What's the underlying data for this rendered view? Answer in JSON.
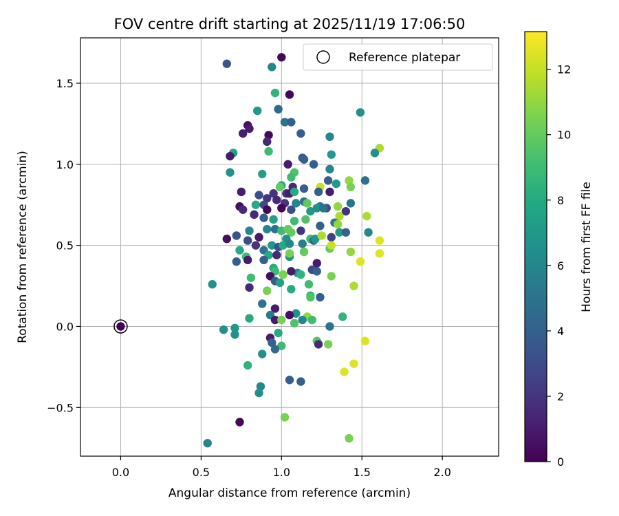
{
  "chart_data": {
    "type": "scatter",
    "title": "FOV centre drift starting at 2025/11/19 17:06:50",
    "xlabel": "Angular distance from reference (arcmin)",
    "ylabel": "Rotation from reference (arcmin)",
    "xlim": [
      -0.25,
      2.35
    ],
    "ylim": [
      -0.8,
      1.78
    ],
    "x_ticks": [
      0.0,
      0.5,
      1.0,
      1.5,
      2.0
    ],
    "x_tick_labels": [
      "0.0",
      "0.5",
      "1.0",
      "1.5",
      "2.0"
    ],
    "y_ticks": [
      -0.5,
      0.0,
      0.5,
      1.0,
      1.5
    ],
    "y_tick_labels": [
      "−0.5",
      "0.0",
      "0.5",
      "1.0",
      "1.5"
    ],
    "grid": true,
    "legend": {
      "label": "Reference platepar",
      "position": "top-right"
    },
    "reference_point": {
      "x": 0.0,
      "y": 0.0
    },
    "colorbar": {
      "label": "Hours from first FF file",
      "range": [
        0,
        13.15
      ],
      "ticks": [
        0,
        2,
        4,
        6,
        8,
        10,
        12
      ],
      "tick_labels": [
        "0",
        "2",
        "4",
        "6",
        "8",
        "10",
        "12"
      ],
      "colormap": [
        "#440154",
        "#482475",
        "#414487",
        "#355f8d",
        "#2a788e",
        "#21918c",
        "#22a884",
        "#44bf70",
        "#7ad151",
        "#bddf26",
        "#fde725"
      ]
    },
    "series": [
      {
        "name": "FOV centre",
        "points": [
          [
            1.0,
            1.66,
            0.3
          ],
          [
            1.05,
            1.43,
            0.2
          ],
          [
            0.66,
            1.62,
            3.5
          ],
          [
            0.94,
            1.6,
            6.0
          ],
          [
            0.96,
            1.44,
            8.5
          ],
          [
            0.98,
            1.34,
            4.5
          ],
          [
            0.85,
            1.33,
            7.0
          ],
          [
            1.49,
            1.32,
            6.5
          ],
          [
            1.02,
            1.26,
            5.0
          ],
          [
            1.06,
            1.26,
            4.0
          ],
          [
            0.79,
            1.24,
            0.5
          ],
          [
            0.8,
            1.22,
            1.0
          ],
          [
            0.76,
            1.19,
            1.0
          ],
          [
            1.12,
            1.19,
            4.0
          ],
          [
            0.92,
            1.18,
            0.3
          ],
          [
            1.3,
            1.17,
            6.0
          ],
          [
            0.91,
            1.14,
            1.5
          ],
          [
            1.61,
            1.1,
            11.5
          ],
          [
            1.58,
            1.07,
            6.5
          ],
          [
            0.7,
            1.07,
            7.5
          ],
          [
            0.68,
            1.05,
            1.0
          ],
          [
            0.92,
            1.08,
            9.0
          ],
          [
            1.31,
            1.06,
            7.0
          ],
          [
            1.13,
            1.04,
            4.0
          ],
          [
            1.14,
            1.03,
            4.0
          ],
          [
            1.04,
            1.0,
            1.0
          ],
          [
            1.2,
            1.0,
            4.0
          ],
          [
            1.3,
            0.97,
            6.0
          ],
          [
            1.08,
            0.95,
            9.5
          ],
          [
            0.68,
            0.95,
            6.5
          ],
          [
            0.88,
            0.94,
            7.5
          ],
          [
            1.06,
            0.92,
            9.0
          ],
          [
            1.29,
            0.9,
            4.0
          ],
          [
            1.34,
            0.88,
            7.0
          ],
          [
            1.42,
            0.9,
            11.0
          ],
          [
            1.52,
            0.9,
            5.0
          ],
          [
            1.0,
            0.87,
            8.0
          ],
          [
            0.99,
            0.86,
            10.0
          ],
          [
            1.07,
            0.86,
            1.5
          ],
          [
            1.14,
            0.85,
            4.0
          ],
          [
            1.24,
            0.86,
            12.0
          ],
          [
            1.43,
            0.86,
            10.5
          ],
          [
            0.75,
            0.83,
            1.0
          ],
          [
            0.86,
            0.81,
            3.0
          ],
          [
            0.95,
            0.82,
            2.0
          ],
          [
            1.03,
            0.82,
            2.0
          ],
          [
            1.05,
            0.82,
            1.0
          ],
          [
            1.08,
            0.83,
            8.0
          ],
          [
            1.23,
            0.83,
            4.0
          ],
          [
            1.3,
            0.83,
            1.0
          ],
          [
            0.91,
            0.79,
            2.0
          ],
          [
            0.97,
            0.78,
            1.5
          ],
          [
            1.02,
            0.76,
            2.0
          ],
          [
            1.09,
            0.76,
            6.0
          ],
          [
            1.14,
            0.77,
            5.0
          ],
          [
            1.16,
            0.76,
            10.0
          ],
          [
            1.24,
            0.74,
            5.0
          ],
          [
            1.28,
            0.73,
            3.0
          ],
          [
            1.35,
            0.74,
            11.0
          ],
          [
            1.43,
            0.76,
            5.0
          ],
          [
            0.74,
            0.74,
            0.5
          ],
          [
            0.76,
            0.72,
            1.5
          ],
          [
            0.84,
            0.75,
            8.0
          ],
          [
            0.89,
            0.75,
            3.0
          ],
          [
            0.91,
            0.72,
            0.2
          ],
          [
            1.0,
            0.73,
            0.2
          ],
          [
            1.06,
            0.72,
            3.0
          ],
          [
            1.18,
            0.71,
            7.0
          ],
          [
            1.22,
            0.73,
            6.5
          ],
          [
            1.26,
            0.73,
            5.0
          ],
          [
            1.4,
            0.71,
            2.0
          ],
          [
            1.36,
            0.68,
            11.5
          ],
          [
            0.83,
            0.69,
            1.5
          ],
          [
            0.89,
            0.67,
            4.0
          ],
          [
            0.95,
            0.66,
            7.5
          ],
          [
            1.08,
            0.65,
            9.0
          ],
          [
            1.15,
            0.66,
            9.5
          ],
          [
            1.33,
            0.64,
            5.0
          ],
          [
            1.35,
            0.63,
            11.0
          ],
          [
            1.53,
            0.68,
            11.5
          ],
          [
            0.91,
            0.6,
            6.0
          ],
          [
            0.96,
            0.6,
            5.0
          ],
          [
            1.0,
            0.59,
            9.0
          ],
          [
            1.04,
            0.6,
            10.0
          ],
          [
            1.06,
            0.58,
            10.0
          ],
          [
            1.12,
            0.59,
            2.0
          ],
          [
            1.24,
            0.62,
            4.0
          ],
          [
            1.36,
            0.58,
            7.0
          ],
          [
            1.4,
            0.58,
            4.0
          ],
          [
            1.54,
            0.58,
            6.0
          ],
          [
            0.72,
            0.56,
            3.5
          ],
          [
            0.8,
            0.59,
            6.0
          ],
          [
            0.86,
            0.55,
            1.0
          ],
          [
            1.03,
            0.54,
            6.5
          ],
          [
            1.18,
            0.54,
            9.0
          ],
          [
            1.2,
            0.53,
            4.0
          ],
          [
            1.21,
            0.54,
            7.0
          ],
          [
            1.25,
            0.56,
            11.5
          ],
          [
            1.31,
            0.55,
            2.5
          ],
          [
            1.61,
            0.53,
            12.5
          ],
          [
            0.66,
            0.54,
            0.5
          ],
          [
            0.79,
            0.53,
            3.0
          ],
          [
            0.84,
            0.5,
            2.0
          ],
          [
            0.89,
            0.47,
            5.0
          ],
          [
            0.94,
            0.5,
            7.0
          ],
          [
            0.98,
            0.49,
            3.5
          ],
          [
            1.01,
            0.5,
            8.0
          ],
          [
            1.05,
            0.51,
            6.0
          ],
          [
            1.13,
            0.51,
            5.5
          ],
          [
            1.3,
            0.48,
            10.0
          ],
          [
            1.31,
            0.5,
            12.0
          ],
          [
            0.74,
            0.47,
            8.0
          ],
          [
            0.78,
            0.43,
            9.0
          ],
          [
            0.92,
            0.44,
            8.0
          ],
          [
            0.97,
            0.44,
            1.5
          ],
          [
            1.05,
            0.43,
            6.5
          ],
          [
            1.05,
            0.45,
            10.5
          ],
          [
            1.14,
            0.46,
            10.0
          ],
          [
            1.43,
            0.46,
            11.0
          ],
          [
            1.61,
            0.45,
            12.5
          ],
          [
            0.72,
            0.4,
            4.0
          ],
          [
            0.79,
            0.41,
            1.0
          ],
          [
            0.89,
            0.41,
            4.0
          ],
          [
            1.22,
            0.39,
            1.0
          ],
          [
            1.49,
            0.4,
            12.5
          ],
          [
            0.95,
            0.36,
            8.0
          ],
          [
            0.96,
            0.34,
            9.0
          ],
          [
            1.1,
            0.33,
            6.5
          ],
          [
            1.12,
            0.32,
            8.5
          ],
          [
            1.19,
            0.35,
            3.0
          ],
          [
            1.22,
            0.34,
            4.0
          ],
          [
            1.31,
            0.31,
            10.5
          ],
          [
            0.81,
            0.3,
            9.0
          ],
          [
            0.93,
            0.31,
            0.5
          ],
          [
            0.96,
            0.28,
            4.0
          ],
          [
            0.99,
            0.27,
            7.5
          ],
          [
            1.01,
            0.32,
            10.5
          ],
          [
            1.06,
            0.34,
            1.0
          ],
          [
            0.57,
            0.26,
            6.5
          ],
          [
            0.8,
            0.24,
            1.5
          ],
          [
            0.91,
            0.22,
            10.5
          ],
          [
            1.06,
            0.23,
            8.0
          ],
          [
            1.17,
            0.26,
            9.0
          ],
          [
            1.45,
            0.25,
            11.5
          ],
          [
            1.18,
            0.19,
            8.5
          ],
          [
            1.18,
            0.18,
            9.5
          ],
          [
            1.24,
            0.18,
            4.0
          ],
          [
            0.88,
            0.14,
            5.0
          ],
          [
            0.96,
            0.11,
            1.0
          ],
          [
            1.09,
            0.08,
            6.5
          ],
          [
            0.93,
            0.07,
            5.5
          ],
          [
            1.16,
            0.06,
            11.0
          ],
          [
            1.05,
            0.07,
            0.5
          ],
          [
            1.38,
            0.06,
            8.5
          ],
          [
            0.8,
            0.05,
            8.0
          ],
          [
            0.96,
            0.04,
            1.0
          ],
          [
            1.0,
            0.04,
            10.5
          ],
          [
            1.13,
            0.04,
            6.0
          ],
          [
            1.19,
            0.04,
            9.0
          ],
          [
            1.08,
            0.02,
            9.5
          ],
          [
            1.3,
            0.0,
            5.0
          ],
          [
            0.71,
            -0.01,
            7.0
          ],
          [
            0.64,
            -0.02,
            6.5
          ],
          [
            0.71,
            -0.05,
            6.5
          ],
          [
            0.93,
            -0.07,
            1.0
          ],
          [
            0.98,
            -0.04,
            8.0
          ],
          [
            1.22,
            -0.09,
            9.5
          ],
          [
            1.23,
            -0.11,
            1.5
          ],
          [
            1.29,
            -0.11,
            10.5
          ],
          [
            1.52,
            -0.09,
            12.5
          ],
          [
            0.94,
            -0.1,
            4.0
          ],
          [
            1.0,
            -0.12,
            9.0
          ],
          [
            0.96,
            -0.14,
            4.5
          ],
          [
            0.88,
            -0.17,
            6.5
          ],
          [
            0.79,
            -0.24,
            8.5
          ],
          [
            1.45,
            -0.23,
            12.5
          ],
          [
            1.39,
            -0.28,
            12.5
          ],
          [
            1.05,
            -0.33,
            4.0
          ],
          [
            1.12,
            -0.34,
            4.0
          ],
          [
            0.87,
            -0.37,
            6.0
          ],
          [
            0.86,
            -0.41,
            6.5
          ],
          [
            1.02,
            -0.56,
            10.5
          ],
          [
            0.74,
            -0.59,
            0.3
          ],
          [
            1.42,
            -0.69,
            10.5
          ],
          [
            0.54,
            -0.72,
            6.0
          ]
        ]
      }
    ]
  }
}
